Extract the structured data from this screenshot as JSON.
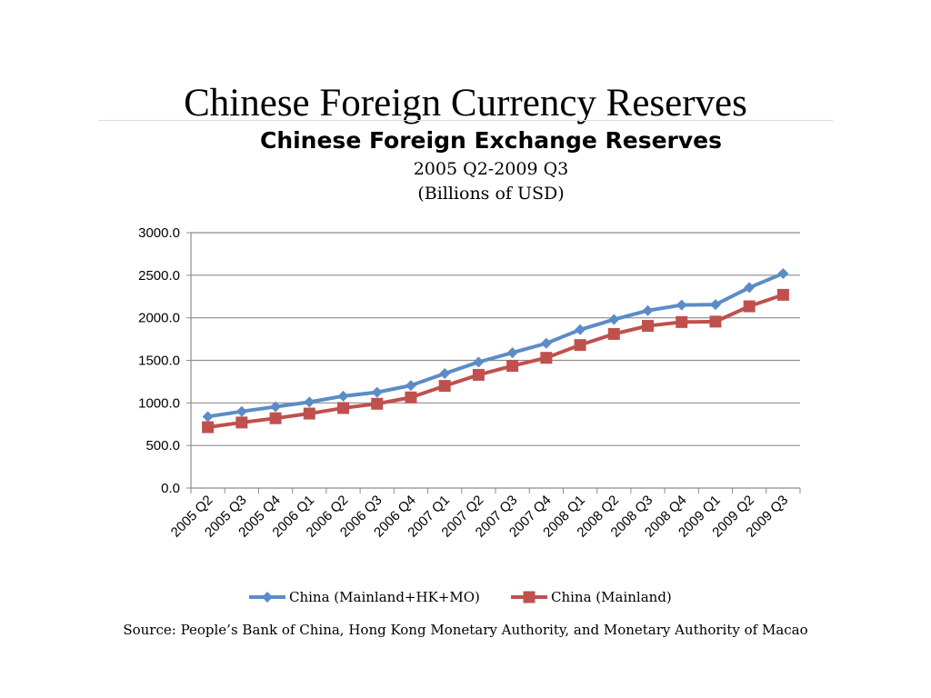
{
  "slide": {
    "title": "Chinese Foreign Currency Reserves",
    "source": "Source:  People’s Bank of China, Hong Kong Monetary Authority, and Monetary Authority of Macao"
  },
  "chart_data": {
    "type": "line",
    "title": "Chinese Foreign Exchange Reserves",
    "subtitle_lines": [
      "2005 Q2-2009 Q3",
      "(Billions of USD)"
    ],
    "xlabel": "",
    "ylabel": "",
    "ylim": [
      0,
      3000
    ],
    "yticks": [
      "0.0",
      "500.0",
      "1000.0",
      "1500.0",
      "2000.0",
      "2500.0",
      "3000.0"
    ],
    "grid": true,
    "legend_position": "bottom",
    "categories": [
      "2005 Q2",
      "2005 Q3",
      "2005 Q4",
      "2006 Q1",
      "2006 Q2",
      "2006 Q3",
      "2006 Q4",
      "2007 Q1",
      "2007 Q2",
      "2007 Q3",
      "2007 Q4",
      "2008 Q1",
      "2008 Q2",
      "2008 Q3",
      "2008 Q4",
      "2009 Q1",
      "2009 Q2",
      "2009 Q3"
    ],
    "series": [
      {
        "name": "China (Mainland+HK+MO)",
        "color": "#5b8cc6",
        "marker": "diamond",
        "values": [
          840,
          900,
          955,
          1010,
          1080,
          1125,
          1205,
          1345,
          1480,
          1590,
          1700,
          1860,
          1980,
          2085,
          2150,
          2155,
          2355,
          2520
        ]
      },
      {
        "name": "China (Mainland)",
        "color": "#c0504d",
        "marker": "square",
        "values": [
          715,
          770,
          820,
          875,
          940,
          990,
          1065,
          1200,
          1330,
          1435,
          1530,
          1680,
          1810,
          1905,
          1950,
          1955,
          2135,
          2270
        ]
      }
    ]
  }
}
